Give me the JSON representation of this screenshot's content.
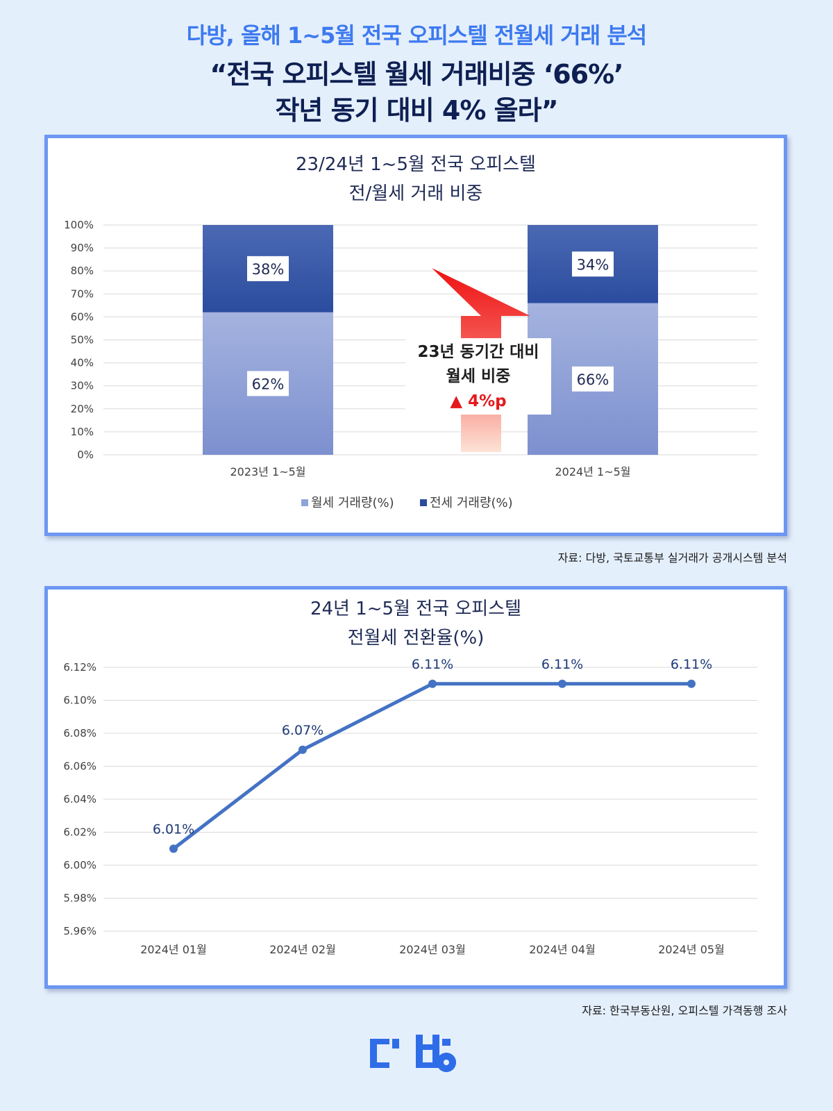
{
  "header": {
    "kicker": "다방, 올해 1~5월 전국 오피스텔 전월세 거래 분석",
    "headline_line1": "“전국 오피스텔 월세 거래비중 ‘66%’",
    "headline_line2": "작년 동기 대비 4% 올라”"
  },
  "colors": {
    "accent": "#3d7af0",
    "headline": "#0e1f52",
    "monthly_rent_bar": "#8ea3d8",
    "jeonse_bar": "#3a5ba8",
    "line": "#4472c4",
    "arrow_red": "#ee1b1b"
  },
  "chart_data": [
    {
      "type": "bar",
      "stacked": true,
      "title": "23/24년 1~5월 전국 오피스텔",
      "subtitle": "전/월세 거래 비중",
      "categories": [
        "2023년 1~5월",
        "2024년 1~5월"
      ],
      "series": [
        {
          "name": "월세 거래량(%)",
          "values": [
            62,
            66
          ],
          "labels": [
            "62%",
            "66%"
          ]
        },
        {
          "name": "전세 거래량(%)",
          "values": [
            38,
            34
          ],
          "labels": [
            "38%",
            "34%"
          ]
        }
      ],
      "yticks": [
        "0%",
        "10%",
        "20%",
        "30%",
        "40%",
        "50%",
        "60%",
        "70%",
        "80%",
        "90%",
        "100%"
      ],
      "ylim": [
        0,
        100
      ],
      "grid": true,
      "legend": "bottom",
      "annotation": {
        "line1": "23년 동기간 대비",
        "line2": "월세 비중",
        "change": "▲ 4%p",
        "arrow": "up"
      }
    },
    {
      "type": "line",
      "title": "24년 1~5월 전국 오피스텔",
      "subtitle": "전월세 전환율(%)",
      "x": [
        "2024년 01월",
        "2024년 02월",
        "2024년 03월",
        "2024년 04월",
        "2024년 05월"
      ],
      "series": [
        {
          "values": [
            6.01,
            6.07,
            6.11,
            6.11,
            6.11
          ],
          "labels": [
            "6.01%",
            "6.07%",
            "6.11%",
            "6.11%",
            "6.11%"
          ]
        }
      ],
      "yticks": [
        "5.96%",
        "5.98%",
        "6.00%",
        "6.02%",
        "6.04%",
        "6.06%",
        "6.08%",
        "6.10%",
        "6.12%"
      ],
      "ylim": [
        5.96,
        6.12
      ],
      "grid": true
    }
  ],
  "sources": {
    "chart1": "자료: 다방, 국토교통부 실거래가 공개시스템 분석",
    "chart2": "자료: 한국부동산원, 오피스텔 가격동행 조사"
  },
  "logo": {
    "text": "다방",
    "icon": "dabang-logo",
    "color": "#2f6de8"
  }
}
